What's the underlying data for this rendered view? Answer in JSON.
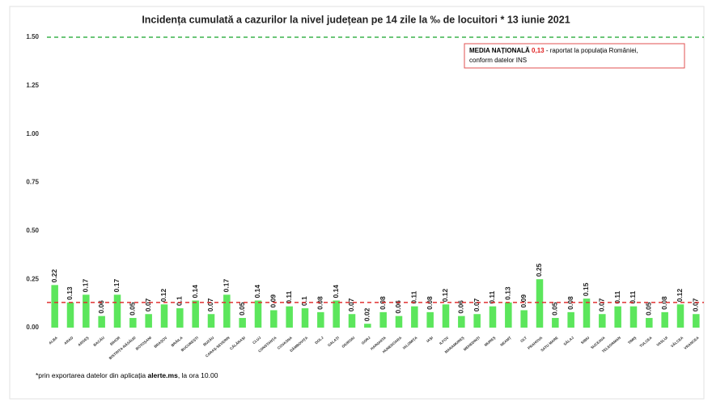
{
  "chart_data": {
    "type": "bar",
    "title": "Incidența cumulată a cazurilor la nivel județean pe 14 zile la ‰ de locuitori *  13 iunie 2021",
    "categories": [
      "ALBA",
      "ARAD",
      "ARGEȘ",
      "BACĂU",
      "BIHOR",
      "BISTRIȚA-NĂSĂUD",
      "BOTOȘANI",
      "BRAȘOV",
      "BRĂILA",
      "BUCUREȘTI",
      "BUZĂU",
      "CARAȘ-SEVERIN",
      "CĂLĂRAȘI",
      "CLUJ",
      "CONSTANȚA",
      "COVASNA",
      "DÂMBOVIȚA",
      "DOLJ",
      "GALAȚI",
      "GIURGIU",
      "GORJ",
      "HARGHITA",
      "HUNEDOARA",
      "IALOMIȚA",
      "IAȘI",
      "ILFOV",
      "MARAMUREȘ",
      "MEHEDINȚI",
      "MUREȘ",
      "NEAMȚ",
      "OLT",
      "PRAHOVA",
      "SATU MARE",
      "SĂLAJ",
      "SIBIU",
      "SUCEAVA",
      "TELEORMAN",
      "TIMIȘ",
      "TULCEA",
      "VASLUI",
      "VÂLCEA",
      "VRANCEA"
    ],
    "values": [
      0.22,
      0.13,
      0.17,
      0.06,
      0.17,
      0.05,
      0.07,
      0.12,
      0.1,
      0.14,
      0.07,
      0.17,
      0.05,
      0.14,
      0.09,
      0.11,
      0.1,
      0.08,
      0.14,
      0.07,
      0.02,
      0.08,
      0.06,
      0.11,
      0.08,
      0.12,
      0.06,
      0.07,
      0.11,
      0.13,
      0.09,
      0.25,
      0.05,
      0.08,
      0.15,
      0.07,
      0.11,
      0.11,
      0.05,
      0.08,
      0.12,
      0.07
    ],
    "color": "#5ce65c",
    "ylim": [
      0,
      1.5
    ],
    "yticks": [
      {
        "value": 0,
        "label": "0.00"
      },
      {
        "value": 0.25,
        "label": "0.25"
      },
      {
        "value": 0.5,
        "label": "0.50"
      },
      {
        "value": 0.75,
        "label": "0.75"
      },
      {
        "value": 1,
        "label": "1.00"
      },
      {
        "value": 1.25,
        "label": "1.25"
      },
      {
        "value": 1.5,
        "label": "1.50"
      }
    ],
    "reference_lines": [
      {
        "value": 0.13,
        "color": "#e03030"
      },
      {
        "value": 1.5,
        "color": "#3cb44b"
      }
    ],
    "annotation": {
      "title": "MEDIA NAȚIONALĂ",
      "value_text": "0,13",
      "text_1": "- raportat la populația României,",
      "text_2": "conform datelor INS"
    },
    "footnote": {
      "text_1": "*prin exportarea datelor din aplicația",
      "bold": "alerte.ms",
      "text_2": ", la ora 10.00"
    }
  }
}
